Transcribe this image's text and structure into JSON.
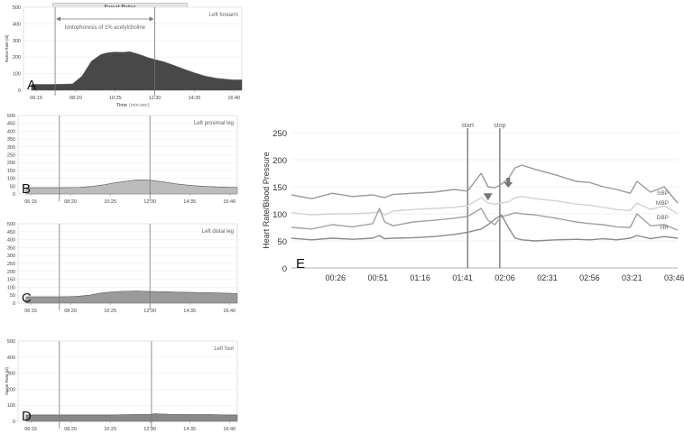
{
  "header_title": "Sweat Rates",
  "annotation": "Iontophoresis of 1% acetylcholine",
  "chart_data": [
    {
      "id": "A",
      "type": "area",
      "title": "Left forearm",
      "ylabel": "Sweat Rate (nl)",
      "xlabel": "Time",
      "xlabel_unit": "(min:sec)",
      "ylim": [
        0,
        500
      ],
      "yticks": [
        0,
        100,
        200,
        300,
        400,
        500
      ],
      "xticks": [
        "06:15",
        "08:20",
        "10:25",
        "12:30",
        "14:35",
        "16:40"
      ],
      "markers": [
        "07:15",
        "12:30"
      ],
      "x": [
        "06:00",
        "07:15",
        "08:10",
        "08:40",
        "09:10",
        "09:40",
        "10:00",
        "10:25",
        "10:50",
        "11:10",
        "11:30",
        "11:50",
        "12:10",
        "12:30",
        "13:00",
        "13:30",
        "14:00",
        "14:35",
        "15:10",
        "15:45",
        "16:20",
        "16:40",
        "17:05"
      ],
      "values": [
        35,
        35,
        38,
        85,
        175,
        215,
        225,
        230,
        228,
        232,
        222,
        210,
        195,
        185,
        170,
        150,
        128,
        105,
        85,
        72,
        65,
        62,
        62
      ]
    },
    {
      "id": "B",
      "type": "area",
      "title": "Left proximal leg",
      "ylim": [
        0,
        500
      ],
      "yticks": [
        0,
        50,
        100,
        150,
        200,
        250,
        300,
        350,
        400,
        450,
        500
      ],
      "xticks": [
        "06:15",
        "08:20",
        "10:25",
        "12:30",
        "14:35",
        "16:40"
      ],
      "markers": [
        "07:45",
        "12:30"
      ],
      "x": [
        "06:00",
        "07:45",
        "08:50",
        "09:30",
        "10:10",
        "10:40",
        "11:20",
        "11:50",
        "12:30",
        "13:10",
        "13:50",
        "14:35",
        "15:20",
        "16:10",
        "16:40",
        "17:05"
      ],
      "values": [
        40,
        40,
        42,
        48,
        60,
        72,
        82,
        90,
        88,
        78,
        65,
        55,
        48,
        44,
        42,
        42
      ]
    },
    {
      "id": "C",
      "type": "area",
      "title": "Left distal leg",
      "ylim": [
        0,
        500
      ],
      "yticks": [
        0,
        50,
        100,
        150,
        200,
        250,
        300,
        350,
        400,
        450,
        500
      ],
      "xticks": [
        "06:15",
        "08:20",
        "10:25",
        "12:30",
        "14:35",
        "16:40"
      ],
      "markers": [
        "07:45",
        "12:30"
      ],
      "x": [
        "06:00",
        "07:45",
        "08:40",
        "09:20",
        "09:50",
        "10:25",
        "11:10",
        "11:50",
        "12:30",
        "13:10",
        "13:50",
        "14:35",
        "15:20",
        "16:10",
        "16:40",
        "17:05"
      ],
      "values": [
        40,
        40,
        42,
        50,
        62,
        70,
        75,
        76,
        74,
        72,
        70,
        68,
        66,
        64,
        62,
        60
      ]
    },
    {
      "id": "D",
      "type": "area",
      "title": "Left foot",
      "ylabel": "Sweat Rate (nl)",
      "ylim": [
        0,
        500
      ],
      "yticks": [
        0,
        100,
        200,
        300,
        400,
        500
      ],
      "xticks": [
        "06:15",
        "08:20",
        "10:25",
        "12:30",
        "14:35",
        "16:40"
      ],
      "markers": [
        "07:45",
        "12:35"
      ],
      "x": [
        "06:00",
        "07:45",
        "09:00",
        "10:25",
        "11:30",
        "12:30",
        "12:45",
        "13:30",
        "14:35",
        "15:40",
        "16:40",
        "17:05"
      ],
      "values": [
        40,
        40,
        40,
        40,
        42,
        44,
        48,
        44,
        42,
        42,
        40,
        40
      ]
    },
    {
      "id": "E",
      "type": "line",
      "ylabel": "Heart Rate/Blood Pressure",
      "ylim": [
        0,
        250
      ],
      "yticks": [
        0,
        50,
        100,
        150,
        200,
        250
      ],
      "xticks": [
        "00:26",
        "00:51",
        "01:16",
        "01:41",
        "02:06",
        "02:31",
        "02:56",
        "03:21",
        "03:46"
      ],
      "markers": [
        {
          "label": "start",
          "t": "01:44"
        },
        {
          "label": "stop",
          "t": "02:03"
        }
      ],
      "x": [
        "00:00",
        "00:12",
        "00:24",
        "00:36",
        "00:48",
        "00:52",
        "00:55",
        "01:00",
        "01:12",
        "01:24",
        "01:36",
        "01:44",
        "01:52",
        "01:56",
        "02:00",
        "02:04",
        "02:08",
        "02:12",
        "02:16",
        "02:24",
        "02:36",
        "02:48",
        "02:56",
        "03:04",
        "03:12",
        "03:20",
        "03:24",
        "03:32",
        "03:40",
        "03:48"
      ],
      "series": [
        {
          "name": "SBP",
          "values": [
            135,
            128,
            138,
            132,
            135,
            132,
            130,
            136,
            138,
            140,
            145,
            142,
            175,
            150,
            148,
            155,
            165,
            185,
            190,
            182,
            172,
            160,
            158,
            150,
            145,
            138,
            160,
            140,
            150,
            120
          ]
        },
        {
          "name": "MBP",
          "values": [
            102,
            98,
            100,
            100,
            102,
            104,
            98,
            105,
            108,
            110,
            112,
            115,
            130,
            120,
            118,
            120,
            122,
            130,
            132,
            128,
            124,
            118,
            116,
            112,
            108,
            106,
            120,
            108,
            115,
            100
          ]
        },
        {
          "name": "DBP",
          "values": [
            75,
            72,
            80,
            76,
            82,
            110,
            85,
            78,
            85,
            88,
            92,
            95,
            110,
            88,
            80,
            95,
            98,
            102,
            100,
            98,
            92,
            85,
            82,
            80,
            76,
            75,
            100,
            78,
            80,
            70
          ]
        },
        {
          "name": "HR",
          "values": [
            55,
            52,
            55,
            53,
            55,
            60,
            54,
            55,
            56,
            58,
            62,
            66,
            72,
            80,
            90,
            98,
            75,
            55,
            52,
            50,
            52,
            53,
            52,
            54,
            52,
            55,
            60,
            54,
            58,
            55
          ]
        }
      ]
    }
  ]
}
